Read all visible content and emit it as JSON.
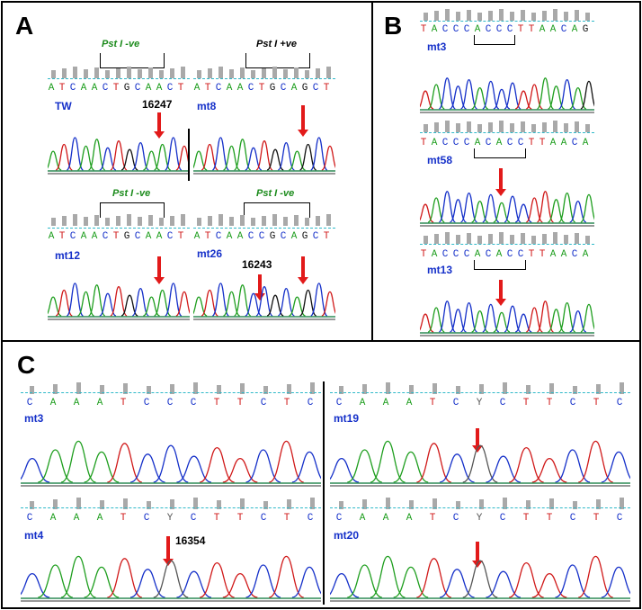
{
  "panels": {
    "A": {
      "letter": "A",
      "tracks": [
        {
          "label": "TW",
          "seq": "ATCAACTGCAACT",
          "enzyme": "Pst I -ve",
          "position": "16247"
        },
        {
          "label": "mt8",
          "seq": "ATCAACTGCAGCT",
          "enzyme": "Pst I +ve"
        },
        {
          "label": "mt12",
          "seq": "ATCAACTGCAACT",
          "enzyme": "Pst I -ve"
        },
        {
          "label": "mt26",
          "seq": "ATCAACCGCAGCT",
          "enzyme": "Pst I -ve",
          "position": "16243"
        }
      ]
    },
    "B": {
      "letter": "B",
      "tracks": [
        {
          "label": "mt3",
          "seq": "TACCCACCCTTAACAG"
        },
        {
          "label": "mt58",
          "seq": "TACCCACACCTTAACA"
        },
        {
          "label": "mt13",
          "seq": "TACCCACACCTTAACA"
        }
      ]
    },
    "C": {
      "letter": "C",
      "tracks": [
        {
          "label": "mt3",
          "seq": "CAAATCCCTTCTC"
        },
        {
          "label": "mt19",
          "seq": "CAAATCYCTTCTC"
        },
        {
          "label": "mt4",
          "seq": "CAAATCYCTTCTC",
          "position": "16354"
        },
        {
          "label": "mt20",
          "seq": "CAAATCYCTTCTC"
        }
      ]
    }
  },
  "base_colors": {
    "A": "#1e9e1e",
    "T": "#d01818",
    "C": "#1530c9",
    "G": "#111111",
    "Y": "#555555"
  }
}
